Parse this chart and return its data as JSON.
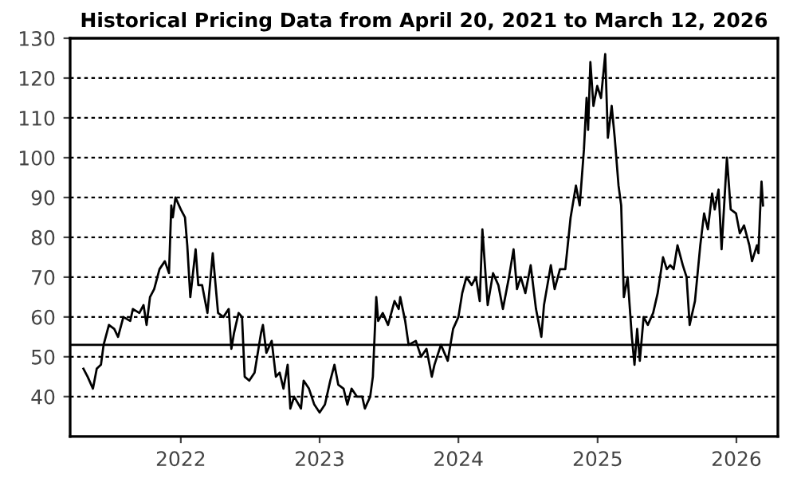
{
  "chart_data": {
    "type": "line",
    "title": "Historical Pricing Data from April 20, 2021 to March 12, 2026",
    "x": [
      "2021-04-20",
      "2021-05-01",
      "2021-05-15",
      "2021-05-25",
      "2021-06-05",
      "2021-06-12",
      "2021-06-26",
      "2021-07-10",
      "2021-07-20",
      "2021-08-03",
      "2021-08-21",
      "2021-08-28",
      "2021-09-14",
      "2021-09-25",
      "2021-10-03",
      "2021-10-12",
      "2021-10-23",
      "2021-11-06",
      "2021-11-20",
      "2021-12-01",
      "2021-12-07",
      "2021-12-11",
      "2021-12-18",
      "2022-01-01",
      "2022-01-12",
      "2022-01-18",
      "2022-01-26",
      "2022-02-09",
      "2022-02-16",
      "2022-02-26",
      "2022-03-12",
      "2022-03-26",
      "2022-04-09",
      "2022-04-23",
      "2022-05-07",
      "2022-05-14",
      "2022-05-21",
      "2022-06-02",
      "2022-06-11",
      "2022-06-18",
      "2022-06-30",
      "2022-07-14",
      "2022-07-31",
      "2022-08-05",
      "2022-08-14",
      "2022-08-28",
      "2022-09-08",
      "2022-09-18",
      "2022-09-28",
      "2022-10-09",
      "2022-10-16",
      "2022-10-26",
      "2022-11-13",
      "2022-11-20",
      "2022-12-04",
      "2022-12-18",
      "2023-01-01",
      "2023-01-15",
      "2023-01-29",
      "2023-02-09",
      "2023-02-19",
      "2023-03-05",
      "2023-03-15",
      "2023-03-26",
      "2023-04-09",
      "2023-04-23",
      "2023-04-30",
      "2023-05-14",
      "2023-05-21",
      "2023-05-30",
      "2023-06-04",
      "2023-06-16",
      "2023-06-30",
      "2023-07-17",
      "2023-07-28",
      "2023-08-01",
      "2023-08-14",
      "2023-08-23",
      "2023-09-11",
      "2023-09-25",
      "2023-10-09",
      "2023-10-23",
      "2023-10-30",
      "2023-11-16",
      "2023-12-04",
      "2023-12-18",
      "2024-01-01",
      "2024-01-11",
      "2024-01-22",
      "2024-02-05",
      "2024-02-16",
      "2024-02-26",
      "2024-03-04",
      "2024-03-18",
      "2024-04-01",
      "2024-04-15",
      "2024-04-27",
      "2024-05-13",
      "2024-05-25",
      "2024-06-03",
      "2024-06-13",
      "2024-06-25",
      "2024-07-09",
      "2024-07-23",
      "2024-08-06",
      "2024-08-13",
      "2024-08-31",
      "2024-09-10",
      "2024-09-24",
      "2024-10-08",
      "2024-10-22",
      "2024-11-05",
      "2024-11-15",
      "2024-11-26",
      "2024-12-03",
      "2024-12-07",
      "2024-12-13",
      "2024-12-21",
      "2024-12-31",
      "2025-01-10",
      "2025-01-21",
      "2025-01-28",
      "2025-02-07",
      "2025-02-15",
      "2025-02-25",
      "2025-03-04",
      "2025-03-11",
      "2025-03-21",
      "2025-04-01",
      "2025-04-08",
      "2025-04-15",
      "2025-04-22",
      "2025-05-02",
      "2025-05-13",
      "2025-05-27",
      "2025-06-08",
      "2025-06-22",
      "2025-07-02",
      "2025-07-11",
      "2025-07-20",
      "2025-07-30",
      "2025-08-13",
      "2025-08-23",
      "2025-08-31",
      "2025-09-14",
      "2025-09-28",
      "2025-10-08",
      "2025-10-18",
      "2025-10-29",
      "2025-11-05",
      "2025-11-15",
      "2025-11-23",
      "2025-12-07",
      "2025-12-17",
      "2025-12-31",
      "2026-01-10",
      "2026-01-21",
      "2026-02-04",
      "2026-02-11",
      "2026-02-24",
      "2026-02-28",
      "2026-03-04",
      "2026-03-08",
      "2026-03-12"
    ],
    "series": [
      {
        "color": "#000000",
        "values": [
          47,
          45,
          42,
          47,
          48,
          53,
          58,
          57,
          55,
          60,
          59,
          62,
          61,
          63,
          58,
          65,
          67,
          72,
          74,
          71,
          88,
          85,
          90,
          87,
          85,
          78,
          65,
          77,
          68,
          68,
          61,
          76,
          61,
          60,
          62,
          52,
          56,
          61,
          60,
          45,
          44,
          46,
          56,
          58,
          51,
          54,
          45,
          46,
          42,
          48,
          37,
          40,
          37,
          44,
          42,
          38,
          36,
          38,
          44,
          48,
          43,
          42,
          38,
          42,
          40,
          40,
          37,
          40,
          45,
          65,
          59,
          61,
          58,
          64,
          62,
          65,
          59,
          53,
          54,
          50,
          52,
          45,
          48,
          53,
          49,
          57,
          60,
          66,
          70,
          68,
          70,
          64,
          82,
          63,
          71,
          68,
          62,
          70,
          77,
          67,
          70,
          66,
          73,
          62,
          55,
          63,
          73,
          67,
          72,
          72,
          85,
          93,
          88,
          102,
          115,
          107,
          124,
          113,
          118,
          115,
          126,
          105,
          113,
          105,
          93,
          88,
          65,
          70,
          55,
          48,
          57,
          49,
          60,
          58,
          61,
          66,
          75,
          72,
          73,
          72,
          78,
          73,
          70,
          58,
          64,
          78,
          86,
          82,
          91,
          87,
          92,
          77,
          100,
          87,
          86,
          81,
          83,
          78,
          74,
          78,
          76,
          86,
          94,
          88
        ]
      }
    ],
    "xlim": [
      "2021-03-16",
      "2026-04-20"
    ],
    "xticks": [
      {
        "value": "2022-01-01",
        "label": "2022"
      },
      {
        "value": "2023-01-01",
        "label": "2023"
      },
      {
        "value": "2024-01-01",
        "label": "2024"
      },
      {
        "value": "2025-01-01",
        "label": "2025"
      },
      {
        "value": "2026-01-01",
        "label": "2026"
      }
    ],
    "ylim": [
      30,
      130
    ],
    "yticks": [
      40,
      50,
      60,
      70,
      80,
      90,
      100,
      110,
      120,
      130
    ],
    "grid": "y",
    "ref_lines": [
      {
        "axis": "y",
        "value": 53,
        "color": "#000000",
        "line_style": "solid"
      }
    ]
  }
}
